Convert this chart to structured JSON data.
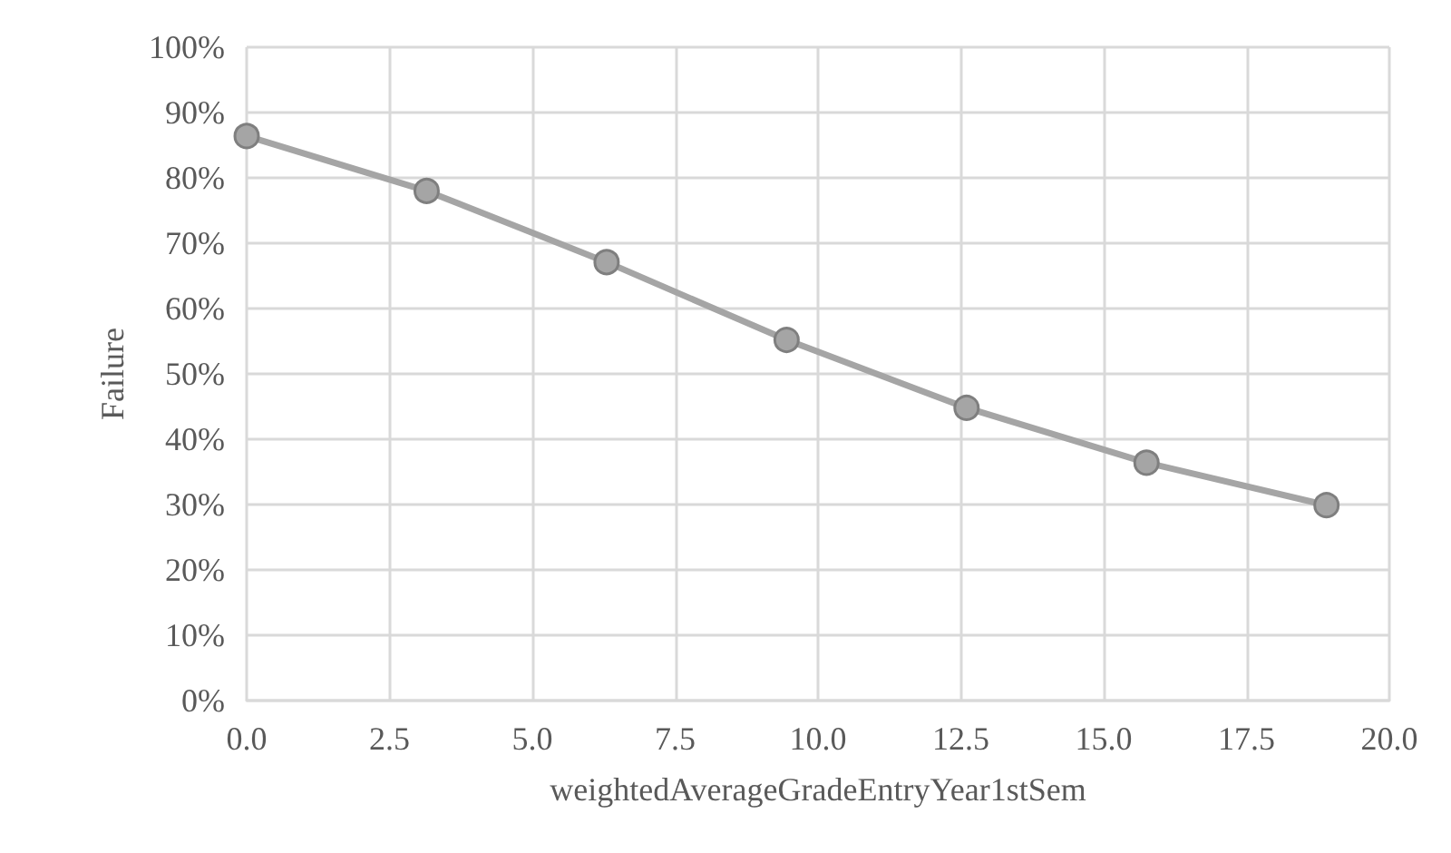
{
  "chart_data": {
    "type": "line",
    "xlabel": "weightedAverageGradeEntryYear1stSem",
    "ylabel": "Failure",
    "x": [
      0,
      3.15,
      6.3,
      9.45,
      12.6,
      15.75,
      18.9
    ],
    "series": [
      {
        "color": "#a5a5a5",
        "values": [
          86.4,
          78.0,
          67.1,
          55.2,
          44.8,
          36.4,
          29.9
        ]
      }
    ],
    "xlim": [
      0,
      20
    ],
    "xticks": [
      {
        "value": 0,
        "label": "0.0"
      },
      {
        "value": 2.5,
        "label": "2.5"
      },
      {
        "value": 5,
        "label": "5.0"
      },
      {
        "value": 7.5,
        "label": "7.5"
      },
      {
        "value": 10,
        "label": "10.0"
      },
      {
        "value": 12.5,
        "label": "12.5"
      },
      {
        "value": 15,
        "label": "15.0"
      },
      {
        "value": 17.5,
        "label": "17.5"
      },
      {
        "value": 20,
        "label": "20.0"
      }
    ],
    "ylim": [
      0,
      100
    ],
    "yticks": [
      {
        "value": 0,
        "label": "0%"
      },
      {
        "value": 10,
        "label": "10%"
      },
      {
        "value": 20,
        "label": "20%"
      },
      {
        "value": 30,
        "label": "30%"
      },
      {
        "value": 40,
        "label": "40%"
      },
      {
        "value": 50,
        "label": "50%"
      },
      {
        "value": 60,
        "label": "60%"
      },
      {
        "value": 70,
        "label": "70%"
      },
      {
        "value": 80,
        "label": "80%"
      },
      {
        "value": 90,
        "label": "90%"
      },
      {
        "value": 100,
        "label": "100%"
      }
    ],
    "grid": true,
    "marker": "circle",
    "line_style": "solid"
  }
}
